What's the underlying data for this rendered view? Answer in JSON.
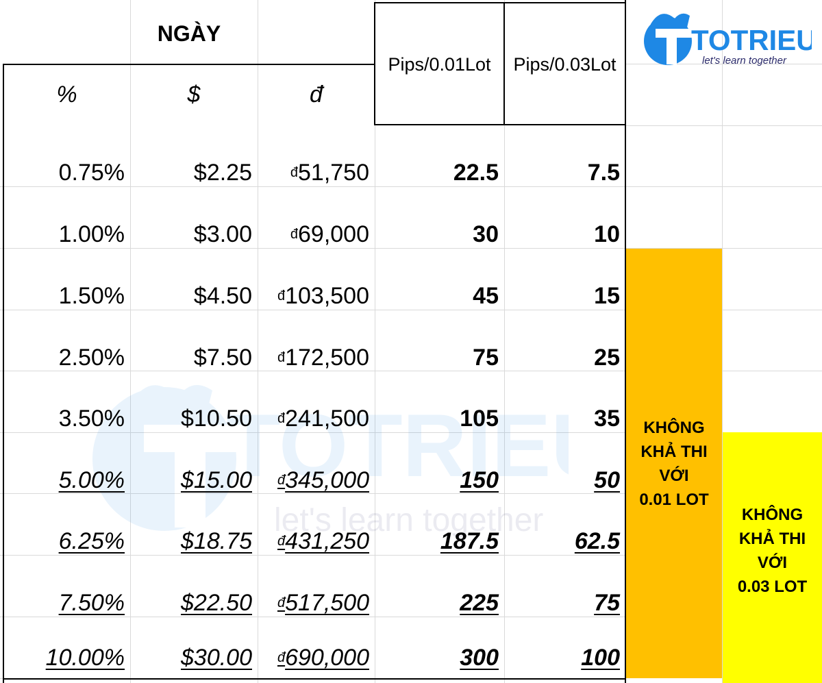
{
  "colors": {
    "orange": "#ffc000",
    "yellow": "#ffff00",
    "brand_blue": "#1e88e5",
    "brand_dark": "#2b2b6b",
    "grid": "#d9d9d9"
  },
  "logo": {
    "name": "TOTRIEU",
    "tagline": "let's learn together"
  },
  "watermark": {
    "name": "TOTRIEU",
    "tagline": "let's learn together"
  },
  "header": {
    "title": "NGÀY",
    "col_percent": "%",
    "col_dollar": "$",
    "col_dong": "đ",
    "col_pips_001": "Pips/0.01Lot",
    "col_pips_003": "Pips/0.03Lot"
  },
  "currency_symbol": "đ",
  "rows": [
    {
      "percent": "0.75%",
      "dollar": "$2.25",
      "dong": "51,750",
      "pips_001": "22.5",
      "pips_003": "7.5"
    },
    {
      "percent": "1.00%",
      "dollar": "$3.00",
      "dong": "69,000",
      "pips_001": "30",
      "pips_003": "10"
    },
    {
      "percent": "1.50%",
      "dollar": "$4.50",
      "dong": "103,500",
      "pips_001": "45",
      "pips_003": "15"
    },
    {
      "percent": "2.50%",
      "dollar": "$7.50",
      "dong": "172,500",
      "pips_001": "75",
      "pips_003": "25"
    },
    {
      "percent": "3.50%",
      "dollar": "$10.50",
      "dong": "241,500",
      "pips_001": "105",
      "pips_003": "35"
    },
    {
      "percent": "5.00%",
      "dollar": "$15.00",
      "dong": "345,000",
      "pips_001": "150",
      "pips_003": "50"
    },
    {
      "percent": "6.25%",
      "dollar": "$18.75",
      "dong": "431,250",
      "pips_001": "187.5",
      "pips_003": "62.5"
    },
    {
      "percent": "7.50%",
      "dollar": "$22.50",
      "dong": "517,500",
      "pips_001": "225",
      "pips_003": "75"
    },
    {
      "percent": "10.00%",
      "dollar": "$30.00",
      "dong": "690,000",
      "pips_001": "300",
      "pips_003": "100"
    }
  ],
  "notes": {
    "lot_001": [
      "KHÔNG",
      "KHẢ THI",
      "VỚI",
      "0.01 LOT"
    ],
    "lot_003": [
      "KHÔNG",
      "KHẢ THI",
      "VỚI",
      "0.03 LOT"
    ]
  }
}
